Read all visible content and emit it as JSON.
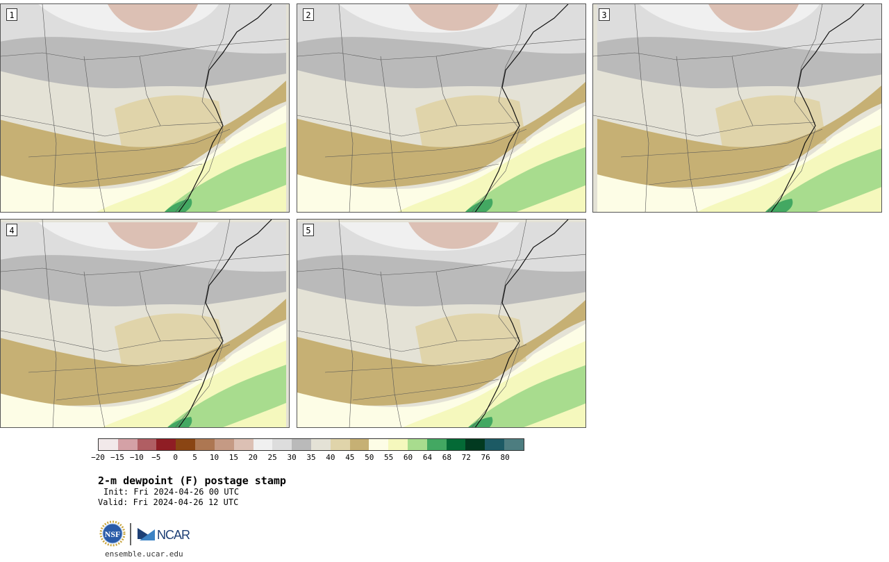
{
  "panels": [
    {
      "label": "1"
    },
    {
      "label": "2"
    },
    {
      "label": "3"
    },
    {
      "label": "4"
    },
    {
      "label": "5"
    }
  ],
  "colorbar": {
    "colors": [
      "#f2e9ea",
      "#d4a1a6",
      "#b05e63",
      "#8f1d24",
      "#8a4513",
      "#ad7752",
      "#c59a84",
      "#dcc0b4",
      "#f0f0f0",
      "#dddddd",
      "#bababa",
      "#e4e2d6",
      "#e0d4aa",
      "#c6b074",
      "#fdfde6",
      "#f5f8bd",
      "#a8dc8e",
      "#43a862",
      "#046a36",
      "#023a20",
      "#1c5a64",
      "#4d7d80"
    ],
    "ticks": [
      "−20",
      "−15",
      "−10",
      "−5",
      "0",
      "5",
      "10",
      "15",
      "20",
      "25",
      "30",
      "35",
      "40",
      "45",
      "50",
      "55",
      "60",
      "64",
      "68",
      "72",
      "76",
      "80"
    ]
  },
  "title": "2-m dewpoint (F) postage stamp",
  "init": "Init: Fri 2024-04-26 00 UTC",
  "valid": "Valid: Fri 2024-04-26 12 UTC",
  "logos": {
    "nsf": "NSF",
    "ncar": "NCAR"
  },
  "site": "ensemble.ucar.edu"
}
